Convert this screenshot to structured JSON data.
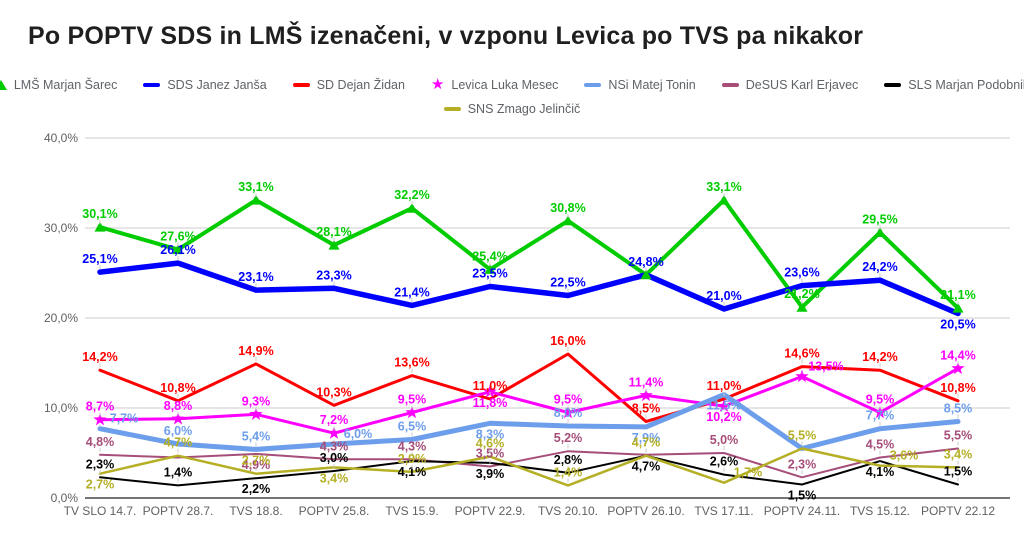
{
  "title": "Po POPTV SDS in LMŠ izenačeni, v vzponu Levica po TVS pa nikakor",
  "chart_data": {
    "type": "line",
    "title": "Po POPTV SDS in LMŠ izenačeni, v vzponu Levica po TVS pa nikakor",
    "legend_position": "top",
    "grid": true,
    "ylim": [
      0,
      40
    ],
    "y_ticks": [
      "0,0%",
      "10,0%",
      "20,0%",
      "30,0%",
      "40,0%"
    ],
    "categories": [
      "TV SLO 14.7.",
      "POPTV 28.7.",
      "TVS 18.8.",
      "POPTV 25.8.",
      "TVS 15.9.",
      "POPTV 22.9.",
      "TVS 20.10.",
      "POPTV 26.10.",
      "TVS 17.11.",
      "POPTV 24.11.",
      "TVS 15.12.",
      "POPTV 22.12"
    ],
    "series": [
      {
        "id": "lms",
        "name": "LMŠ Marjan Šarec",
        "color": "#00cc00",
        "marker": "triangle",
        "width": 4,
        "values": [
          30.1,
          27.6,
          33.1,
          28.1,
          32.2,
          25.4,
          30.8,
          24.8,
          33.1,
          21.2,
          29.5,
          21.1
        ],
        "labels": [
          "30,1%",
          "27,6%",
          "33,1%",
          "28,1%",
          "32,2%",
          "25,4%",
          "30,8%",
          "",
          "33,1%",
          "21,2%",
          "29,5%",
          "21,1%"
        ]
      },
      {
        "id": "sds",
        "name": "SDS Janez Janša",
        "color": "#0000ff",
        "marker": "none",
        "width": 5.5,
        "values": [
          25.1,
          26.1,
          23.1,
          23.3,
          21.4,
          23.5,
          22.5,
          24.8,
          21.0,
          23.6,
          24.2,
          20.5
        ],
        "labels": [
          "25,1%",
          "26,1%",
          "23,1%",
          "23,3%",
          "21,4%",
          "23,5%",
          "22,5%",
          "24,8%",
          "21,0%",
          "23,6%",
          "24,2%",
          "20,5%"
        ]
      },
      {
        "id": "sd",
        "name": "SD Dejan Židan",
        "color": "#ff0000",
        "marker": "none",
        "width": 3,
        "values": [
          14.2,
          10.8,
          14.9,
          10.3,
          13.6,
          11.0,
          16.0,
          8.5,
          11.0,
          14.6,
          14.2,
          10.8
        ],
        "labels": [
          "14,2%",
          "10,8%",
          "14,9%",
          "10,3%",
          "13,6%",
          "11,0%",
          "16,0%",
          "8,5%",
          "11,0%",
          "14,6%",
          "14,2%",
          "10,8%"
        ]
      },
      {
        "id": "levica",
        "name": "Levica Luka Mesec",
        "color": "#ff00ff",
        "marker": "star",
        "width": 3,
        "values": [
          8.7,
          8.8,
          9.3,
          7.2,
          9.5,
          11.8,
          9.5,
          11.4,
          10.2,
          13.5,
          9.5,
          14.4
        ],
        "labels": [
          "8,7%",
          "8,8%",
          "9,3%",
          "7,2%",
          "9,5%",
          "11,8%",
          "9,5%",
          "11,4%",
          "10,2%",
          "13,5%",
          "9,5%",
          "14,4%"
        ]
      },
      {
        "id": "nsi",
        "name": "NSi Matej Tonin",
        "color": "#6d9eeb",
        "marker": "none",
        "width": 5,
        "values": [
          7.7,
          6.0,
          5.4,
          6.0,
          6.5,
          8.3,
          8.0,
          7.9,
          11.5,
          5.5,
          7.7,
          8.5
        ],
        "labels": [
          "7,7%",
          "6,0%",
          "5,4%",
          "6,0%",
          "6,5%",
          "8,3%",
          "8,0%",
          "7,9%",
          "11,5%",
          "",
          "7,7%",
          "8,5%"
        ]
      },
      {
        "id": "desus",
        "name": "DeSUS Karl Erjavec",
        "color": "#a64d79",
        "marker": "none",
        "width": 2,
        "values": [
          4.8,
          4.5,
          4.9,
          4.3,
          4.3,
          3.5,
          5.2,
          4.8,
          5.0,
          2.3,
          4.5,
          5.5
        ],
        "labels": [
          "4,8%",
          "",
          "4,9%",
          "4,3%",
          "4,3%",
          "3,5%",
          "5,2%",
          "",
          "5,0%",
          "2,3%",
          "4,5%",
          "5,5%"
        ]
      },
      {
        "id": "sls",
        "name": "SLS Marjan Podobnik",
        "color": "#000000",
        "marker": "none",
        "width": 2,
        "values": [
          2.3,
          1.4,
          2.2,
          3.0,
          4.1,
          3.9,
          2.8,
          4.7,
          2.6,
          1.5,
          4.1,
          1.5
        ],
        "labels": [
          "2,3%",
          "1,4%",
          "2,2%",
          "3,0%",
          "4,1%",
          "3,9%",
          "2,8%",
          "4,7%",
          "2,6%",
          "1,5%",
          "4,1%",
          "1,5%"
        ]
      },
      {
        "id": "sns",
        "name": "SNS Zmago Jelinčič",
        "color": "#b4af24",
        "marker": "none",
        "width": 2.5,
        "values": [
          2.7,
          4.7,
          2.7,
          3.4,
          2.9,
          4.6,
          1.4,
          4.7,
          1.7,
          5.5,
          3.6,
          3.4
        ],
        "labels": [
          "2,7%",
          "4,7%",
          "2,7%",
          "3,4%",
          "2,9%",
          "4,6%",
          "1,4%",
          "4,7%",
          "1,7%",
          "5,5%",
          "3,6%",
          "3,4%"
        ]
      }
    ]
  }
}
